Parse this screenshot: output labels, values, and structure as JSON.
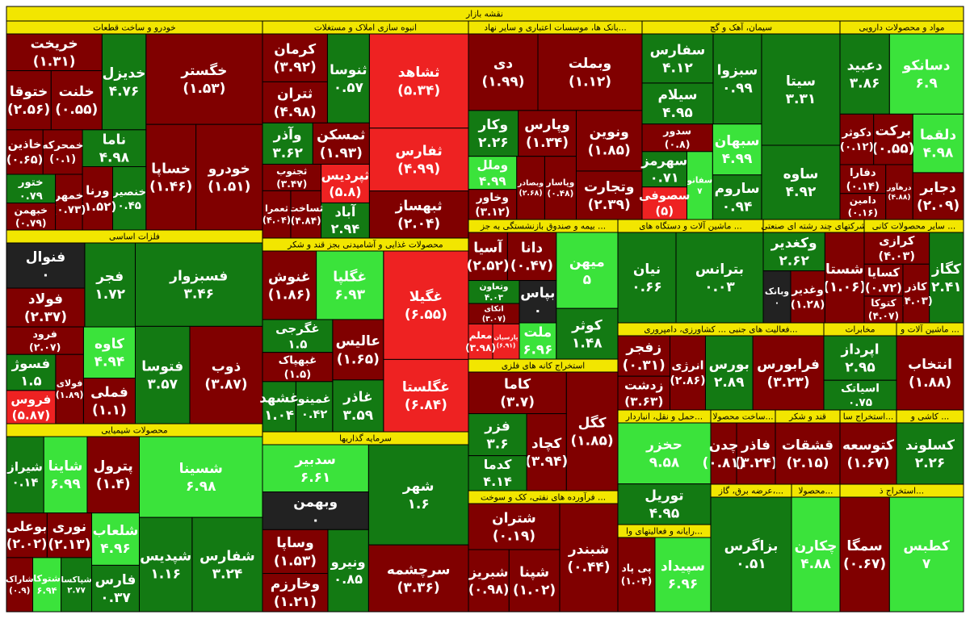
{
  "chart_data": {
    "type": "treemap",
    "title": "نقشه بازار",
    "sectors": [
      {
        "name": "خودرو و ساخت قطعات",
        "labels": [
          "خگستر",
          "خودرو",
          "خساپا",
          "خدیزل",
          "خریخت",
          "خلنت",
          "ختوقا",
          "ناما",
          "خنصیر",
          "ورنا",
          "خمحرکه",
          "خاذین",
          "خمهر",
          "ختور",
          "خبهمن"
        ],
        "values": [
          -1.53,
          -1.51,
          -1.46,
          4.76,
          -1.31,
          -0.55,
          -2.56,
          4.98,
          0.45,
          -1.52,
          -0.1,
          -0.65,
          -0.73,
          0.79,
          -0.79
        ],
        "value_labels": [
          "(۱.۵۳)",
          "(۱.۵۱)",
          "(۱.۴۶)",
          "۴.۷۶",
          "(۱.۳۱)",
          "(۰.۵۵)",
          "(۲.۵۶)",
          "۴.۹۸",
          "۰.۴۵",
          "(۱.۵۲)",
          "(۰.۱)",
          "(۰.۶۵)",
          "(۰.۷۳)",
          "۰.۷۹",
          "(۰.۷۹)"
        ],
        "colors": [
          "#800000",
          "#800000",
          "#800000",
          "#137a13",
          "#800000",
          "#800000",
          "#800000",
          "#137a13",
          "#137a13",
          "#800000",
          "#800000",
          "#800000",
          "#800000",
          "#137a13",
          "#800000"
        ]
      },
      {
        "name": "فلزات اساسی",
        "labels": [
          "فسبزوار",
          "ذوب",
          "فتوسا",
          "فجر",
          "فنوال",
          "فولاد",
          "کاوه",
          "فملی",
          "فرود",
          "فولای",
          "فسوژ",
          "فروس"
        ],
        "values": [
          3.46,
          -3.87,
          3.57,
          1.72,
          0,
          -2.37,
          4.94,
          -1.1,
          -2.07,
          -1.89,
          1.5,
          -5.87
        ],
        "value_labels": [
          "۳.۴۶",
          "(۳.۸۷)",
          "۳.۵۷",
          "۱.۷۲",
          "۰",
          "(۲.۳۷)",
          "۴.۹۴",
          "(۱.۱)",
          "(۲.۰۷)",
          "(۱.۸۹)",
          "۱.۵",
          "(۵.۸۷)"
        ],
        "colors": [
          "#137a13",
          "#800000",
          "#137a13",
          "#137a13",
          "#222222",
          "#800000",
          "#3be33b",
          "#800000",
          "#800000",
          "#800000",
          "#137a13",
          "#ee2222"
        ]
      },
      {
        "name": "محصولات شیمیایی",
        "labels": [
          "شسینا",
          "شفارس",
          "شپدیس",
          "پترول",
          "شاینا",
          "شیراز",
          "شلعاب",
          "فارس",
          "نوری",
          "بوعلی",
          "شپاکسا",
          "شتوکا",
          "شاراک"
        ],
        "values": [
          6.98,
          3.24,
          1.16,
          -1.4,
          6.99,
          0.14,
          4.96,
          0.37,
          -2.13,
          -2.02,
          2.77,
          6.94,
          -0.9
        ],
        "value_labels": [
          "۶.۹۸",
          "۳.۲۴",
          "۱.۱۶",
          "(۱.۴)",
          "۶.۹۹",
          "۰.۱۴",
          "۴.۹۶",
          "۰.۳۷",
          "(۲.۱۳)",
          "(۲.۰۲)",
          "۲.۷۷",
          "۶.۹۴",
          "(۰.۹)"
        ],
        "colors": [
          "#3be33b",
          "#137a13",
          "#137a13",
          "#800000",
          "#3be33b",
          "#137a13",
          "#3be33b",
          "#137a13",
          "#800000",
          "#800000",
          "#137a13",
          "#3be33b",
          "#800000"
        ]
      },
      {
        "name": "انبوه سازی املاک و مستغلات",
        "labels": [
          "ثشاهد",
          "ثفارس",
          "ثبهساز",
          "ثنوسا",
          "کرمان",
          "ثتران",
          "ثمسکن",
          "وآذر",
          "ثپردیس",
          "آباد",
          "ثجنوب",
          "ثساخت",
          "ثعمرا"
        ],
        "values": [
          -5.34,
          -4.99,
          -2.04,
          0.57,
          -3.92,
          -4.98,
          -1.93,
          3.62,
          -5.8,
          2.94,
          -3.47,
          -4.84,
          -4.04
        ],
        "value_labels": [
          "(۵.۳۴)",
          "(۴.۹۹)",
          "(۲.۰۴)",
          "۰.۵۷",
          "(۳.۹۲)",
          "(۴.۹۸)",
          "(۱.۹۳)",
          "۳.۶۲",
          "(۵.۸)",
          "۲.۹۴",
          "(۳.۴۷)",
          "(۴.۸۴)",
          "(۴.۰۴)"
        ],
        "colors": [
          "#ee2222",
          "#ee2222",
          "#800000",
          "#137a13",
          "#800000",
          "#800000",
          "#800000",
          "#137a13",
          "#ee2222",
          "#137a13",
          "#800000",
          "#800000",
          "#800000"
        ]
      },
      {
        "name": "محصولات غذایی و آشامیدنی بجز قند و شکر",
        "labels": [
          "غگیلا",
          "غگلستا",
          "غگلپا",
          "غنوش",
          "عالیس",
          "غاذر",
          "غگرجی",
          "غبهپاک",
          "غمینو",
          "غشهد"
        ],
        "values": [
          -6.55,
          -6.84,
          6.93,
          -1.86,
          -1.65,
          3.59,
          1.5,
          -1.5,
          0.42,
          1.04
        ],
        "value_labels": [
          "(۶.۵۵)",
          "(۶.۸۴)",
          "۶.۹۳",
          "(۱.۸۶)",
          "(۱.۶۵)",
          "۳.۵۹",
          "۱.۵",
          "(۱.۵)",
          "۰.۴۲",
          "۱.۰۴"
        ],
        "colors": [
          "#ee2222",
          "#ee2222",
          "#3be33b",
          "#800000",
          "#800000",
          "#137a13",
          "#137a13",
          "#800000",
          "#137a13",
          "#137a13"
        ]
      },
      {
        "name": "سرمایه گذاریها",
        "labels": [
          "شهر",
          "سرچشمه",
          "سدبیر",
          "وبهمن",
          "ونیرو",
          "وساپا",
          "وخارزم"
        ],
        "values": [
          1.6,
          -3.36,
          6.61,
          0,
          0.85,
          -1.53,
          -1.21
        ],
        "value_labels": [
          "۱.۶",
          "(۳.۳۶)",
          "۶.۶۱",
          "۰",
          "۰.۸۵",
          "(۱.۵۳)",
          "(۱.۲۱)"
        ],
        "colors": [
          "#137a13",
          "#800000",
          "#3be33b",
          "#222222",
          "#137a13",
          "#800000",
          "#800000"
        ]
      },
      {
        "name": "بانک ها، موسسات اعتباری و سایر نهاد...",
        "labels": [
          "وبملت",
          "دی",
          "ونوین",
          "وتجارت",
          "وپارس",
          "وکار",
          "وپاسار",
          "وبصادر",
          "وملل",
          "وخاور"
        ],
        "values": [
          -1.12,
          -1.99,
          -1.85,
          -2.39,
          -1.34,
          2.26,
          -0.48,
          -2.68,
          4.99,
          -3.12
        ],
        "value_labels": [
          "(۱.۱۲)",
          "(۱.۹۹)",
          "(۱.۸۵)",
          "(۲.۳۹)",
          "(۱.۳۴)",
          "۲.۲۶",
          "(۰.۴۸)",
          "(۲.۶۸)",
          "۴.۹۹",
          "(۳.۱۲)"
        ],
        "colors": [
          "#800000",
          "#800000",
          "#800000",
          "#800000",
          "#800000",
          "#137a13",
          "#800000",
          "#800000",
          "#3be33b",
          "#800000"
        ]
      },
      {
        "name": "سیمان، آهک و گچ",
        "labels": [
          "سیتا",
          "ساوه",
          "سبزوا",
          "سفارس",
          "سیلام",
          "سبهان",
          "ساروم",
          "سدور",
          "سفانو",
          "سهرمز",
          "سصوفی"
        ],
        "values": [
          3.31,
          4.92,
          0.99,
          4.12,
          4.95,
          4.99,
          0.94,
          -0.8,
          7,
          0.71,
          -5
        ],
        "value_labels": [
          "۳.۳۱",
          "۴.۹۲",
          "۰.۹۹",
          "۴.۱۲",
          "۴.۹۵",
          "۴.۹۹",
          "۰.۹۴",
          "(۰.۸)",
          "۷",
          "۰.۷۱",
          "(۵)"
        ],
        "colors": [
          "#137a13",
          "#137a13",
          "#137a13",
          "#137a13",
          "#137a13",
          "#3be33b",
          "#137a13",
          "#800000",
          "#3be33b",
          "#137a13",
          "#ee2222"
        ]
      },
      {
        "name": "مواد و محصولات دارویی",
        "labels": [
          "دسانکو",
          "دعبید",
          "دلقما",
          "دجابر",
          "برکت",
          "دکوثر",
          "درهآور",
          "دفارا",
          "دامین"
        ],
        "values": [
          6.9,
          3.86,
          4.98,
          -2.09,
          -0.55,
          -0.12,
          -4.88,
          -0.14,
          -0.16
        ],
        "value_labels": [
          "۶.۹",
          "۳.۸۶",
          "۴.۹۸",
          "(۲.۰۹)",
          "(۰.۵۵)",
          "(۰.۱۲)",
          "(۴.۸۸)",
          "(۰.۱۴)",
          "(۰.۱۶)"
        ],
        "colors": [
          "#3be33b",
          "#137a13",
          "#3be33b",
          "#800000",
          "#800000",
          "#800000",
          "#800000",
          "#800000",
          "#800000"
        ]
      },
      {
        "name": "بیمه و صندوق بازنشستگی به جز ...",
        "labels": [
          "میهن",
          "کوثر",
          "دانا",
          "آسیا",
          "بپاس",
          "ملت",
          "وتعاون",
          "اتکای",
          "پارسیان",
          "معلم"
        ],
        "values": [
          5,
          1.48,
          -0.47,
          -2.52,
          0,
          6.96,
          4.03,
          -3.07,
          -6.91,
          -3.98
        ],
        "value_labels": [
          "۵",
          "۱.۴۸",
          "(۰.۴۷)",
          "(۲.۵۲)",
          "۰",
          "۶.۹۶",
          "۴.۰۳",
          "(۳.۰۷)",
          "(۶.۹۱)",
          "(۳.۹۸)"
        ],
        "colors": [
          "#3be33b",
          "#137a13",
          "#800000",
          "#800000",
          "#222222",
          "#3be33b",
          "#137a13",
          "#800000",
          "#ee2222",
          "#ee2222"
        ]
      },
      {
        "name": "استخراج کانه های فلزی",
        "labels": [
          "کگل",
          "کاما",
          "کچاد",
          "فزر",
          "کدما"
        ],
        "values": [
          -1.85,
          -3.7,
          -3.94,
          3.6,
          4.14
        ],
        "value_labels": [
          "(۱.۸۵)",
          "(۳.۷)",
          "(۳.۹۴)",
          "۳.۶",
          "۴.۱۴"
        ],
        "colors": [
          "#800000",
          "#800000",
          "#800000",
          "#137a13",
          "#137a13"
        ]
      },
      {
        "name": "فرآورده های نفتی، کک و سوخت ...",
        "labels": [
          "شبندر",
          "شتران",
          "شپنا",
          "شبریز"
        ],
        "values": [
          -0.44,
          -0.19,
          -1.02,
          -0.98
        ],
        "value_labels": [
          "(۰.۴۴)",
          "(۰.۱۹)",
          "(۱.۰۲)",
          "(۰.۹۸)"
        ],
        "colors": [
          "#800000",
          "#800000",
          "#800000",
          "#800000"
        ]
      },
      {
        "name": "ماشین آلات و دستگاه های ...",
        "labels": [
          "بترانس",
          "نیان"
        ],
        "values": [
          0.03,
          0.66
        ],
        "value_labels": [
          "۰.۰۳",
          "۰.۶۶"
        ],
        "colors": [
          "#137a13",
          "#137a13"
        ]
      },
      {
        "name": "شرکتهای چند رشته ای صنعتی",
        "labels": [
          "شستا",
          "وکغدیر",
          "وغدیر",
          "وبانک"
        ],
        "values": [
          -1.06,
          2.62,
          -1.28,
          0
        ],
        "value_labels": [
          "(۱.۰۶)",
          "۲.۶۲",
          "(۱.۲۸)",
          "۰"
        ],
        "colors": [
          "#800000",
          "#137a13",
          "#800000",
          "#222222"
        ]
      },
      {
        "name": "سایر محصولات کانی ...",
        "labels": [
          "کگاز",
          "کرازی",
          "کاذر",
          "کسایا",
          "کتوکا"
        ],
        "values": [
          2.41,
          -4.03,
          -4.03,
          -0.72,
          -4.07
        ],
        "value_labels": [
          "۲.۴۱",
          "(۴.۰۳)",
          "(۴.۰۳)",
          "(۰.۷۲)",
          "(۴.۰۷)"
        ],
        "colors": [
          "#137a13",
          "#800000",
          "#800000",
          "#800000",
          "#800000"
        ]
      },
      {
        "name": "فعالیت های جنبی ... کشاورزی، دامپروری...",
        "labels": [
          "فرابورس",
          "بورس",
          "انرژی",
          "زفجر",
          "زدشت"
        ],
        "values": [
          -3.23,
          2.89,
          -2.86,
          -0.31,
          -3.63
        ],
        "value_labels": [
          "(۳.۲۳)",
          "۲.۸۹",
          "(۲.۸۶)",
          "(۰.۳۱)",
          "(۳.۶۳)"
        ],
        "colors": [
          "#800000",
          "#137a13",
          "#800000",
          "#800000",
          "#800000"
        ]
      },
      {
        "name": "مخابرات",
        "labels": [
          "اپرداز",
          "اسیاتک"
        ],
        "values": [
          2.95,
          0.75
        ],
        "value_labels": [
          "۲.۹۵",
          "۰.۷۵"
        ],
        "colors": [
          "#137a13",
          "#137a13"
        ]
      },
      {
        "name": "ماشین آلات و ...",
        "labels": [
          "انتخاب"
        ],
        "values": [
          -1.88
        ],
        "value_labels": [
          "(۱.۸۸)"
        ],
        "colors": [
          "#800000"
        ]
      },
      {
        "name": "حمل و نقل، انباردار...",
        "labels": [
          "حخزر",
          "توریل"
        ],
        "values": [
          9.58,
          4.95
        ],
        "value_labels": [
          "۹.۵۸",
          "۴.۹۵"
        ],
        "colors": [
          "#3be33b",
          "#137a13"
        ]
      },
      {
        "name": "ساخت محصولا...",
        "labels": [
          "فاذر",
          "چدن"
        ],
        "values": [
          -3.24,
          -0.81
        ],
        "value_labels": [
          "(۳.۲۴)",
          "(۰.۸۱)"
        ],
        "colors": [
          "#800000",
          "#800000"
        ]
      },
      {
        "name": "قند و شکر",
        "labels": [
          "قشقات"
        ],
        "values": [
          -2.15
        ],
        "value_labels": [
          "(۲.۱۵)"
        ],
        "colors": [
          "#800000"
        ]
      },
      {
        "name": "استخراج سا...",
        "labels": [
          "کتوسعه"
        ],
        "values": [
          -1.67
        ],
        "value_labels": [
          "(۱.۶۷)"
        ],
        "colors": [
          "#800000"
        ]
      },
      {
        "name": "کاشی و ...",
        "labels": [
          "کسلوند"
        ],
        "values": [
          2.26
        ],
        "value_labels": [
          "۲.۲۶"
        ],
        "colors": [
          "#137a13"
        ]
      },
      {
        "name": "عرضه برق، گاز،...",
        "labels": [
          "بزاگرس"
        ],
        "values": [
          0.51
        ],
        "value_labels": [
          "۰.۵۱"
        ],
        "colors": [
          "#137a13"
        ]
      },
      {
        "name": "محصولا...",
        "labels": [
          "چکارن"
        ],
        "values": [
          4.88
        ],
        "value_labels": [
          "۴.۸۸"
        ],
        "colors": [
          "#3be33b"
        ]
      },
      {
        "name": "استخراج ذ...",
        "labels": [
          "کطبس",
          "سمگا"
        ],
        "values": [
          7,
          -0.67
        ],
        "value_labels": [
          "۷",
          "(۰.۶۷)"
        ],
        "colors": [
          "#3be33b",
          "#800000"
        ]
      },
      {
        "name": "رایانه و فعالیتهای وا...",
        "labels": [
          "سپیداد",
          "پی پاد"
        ],
        "values": [
          6.96,
          -1.04
        ],
        "value_labels": [
          "۶.۹۶",
          "(۱.۰۴)"
        ],
        "colors": [
          "#3be33b",
          "#800000"
        ]
      }
    ]
  }
}
